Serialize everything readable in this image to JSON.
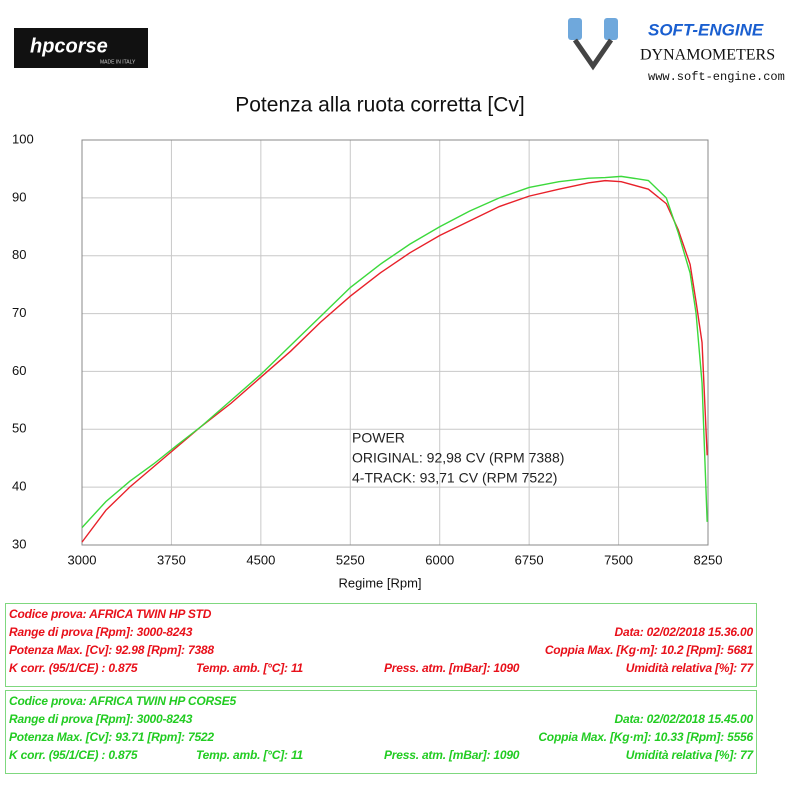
{
  "header": {
    "logo_left": "hpcorse",
    "logo_left_sub": "MADE IN ITALY",
    "logo_right": "SOFT-ENGINE",
    "logo_right_sub": "DYNAMOMETERS",
    "website": "www.soft-engine.com"
  },
  "chart_data": {
    "type": "line",
    "title": "Potenza alla ruota corretta [Cv]",
    "x_label": "Regime [Rpm]",
    "x": [
      3000,
      3200,
      3400,
      3600,
      3800,
      4000,
      4250,
      4500,
      4750,
      5000,
      5250,
      5500,
      5750,
      6000,
      6250,
      6500,
      6750,
      7000,
      7250,
      7388,
      7522,
      7750,
      7900,
      8000,
      8100,
      8150,
      8200,
      8243
    ],
    "series": [
      {
        "color": "#e8212a",
        "values": [
          30.5,
          36,
          40,
          43.5,
          47,
          50.5,
          54.5,
          59,
          63.5,
          68.5,
          73,
          77,
          80.5,
          83.5,
          86,
          88.5,
          90.3,
          91.5,
          92.6,
          92.98,
          92.8,
          91.5,
          89,
          84.5,
          78.5,
          72,
          65,
          45.5
        ]
      },
      {
        "color": "#3cd93c",
        "values": [
          33,
          37.5,
          41,
          44,
          47.3,
          50.5,
          55,
          59.5,
          64.5,
          69.5,
          74.5,
          78.5,
          82,
          85,
          87.7,
          90,
          91.8,
          92.8,
          93.4,
          93.5,
          93.71,
          93,
          90,
          84,
          77,
          70,
          58,
          34
        ]
      }
    ],
    "xlim": [
      3000,
      8250
    ],
    "xticks": [
      3000,
      3750,
      4500,
      5250,
      6000,
      6750,
      7500,
      8250
    ],
    "ylim": [
      30,
      100
    ],
    "yticks": [
      30,
      40,
      50,
      60,
      70,
      80,
      90,
      100
    ],
    "grid": true,
    "annotations": [
      "POWER",
      "ORIGINAL: 92,98 CV (RPM 7388)",
      "4-TRACK: 93,71 CV (RPM 7522)"
    ]
  },
  "reports": [
    {
      "color": "#e8101a",
      "code": "Codice prova: AFRICA TWIN HP STD",
      "range": "Range di prova [Rpm]: 3000-8243",
      "date": "Data: 02/02/2018   15.36.00",
      "power": "Potenza Max. [Cv]: 92.98   [Rpm]: 7388",
      "torque": "Coppia Max. [Kg·m]: 10.2   [Rpm]: 5681",
      "kcorr": "K corr. (95/1/CE) : 0.875",
      "temp": "Temp. amb. [°C]: 11",
      "press": "Press. atm. [mBar]: 1090",
      "humidity": "Umidità relativa [%]: 77"
    },
    {
      "color": "#22cc22",
      "code": "Codice prova: AFRICA TWIN HP CORSE5",
      "range": "Range di prova [Rpm]: 3000-8243",
      "date": "Data: 02/02/2018   15.45.00",
      "power": "Potenza Max. [Cv]: 93.71   [Rpm]: 7522",
      "torque": "Coppia Max. [Kg·m]: 10.33   [Rpm]: 5556",
      "kcorr": "K corr. (95/1/CE) : 0.875",
      "temp": "Temp. amb. [°C]: 11",
      "press": "Press. atm. [mBar]: 1090",
      "humidity": "Umidità relativa [%]: 77"
    }
  ]
}
